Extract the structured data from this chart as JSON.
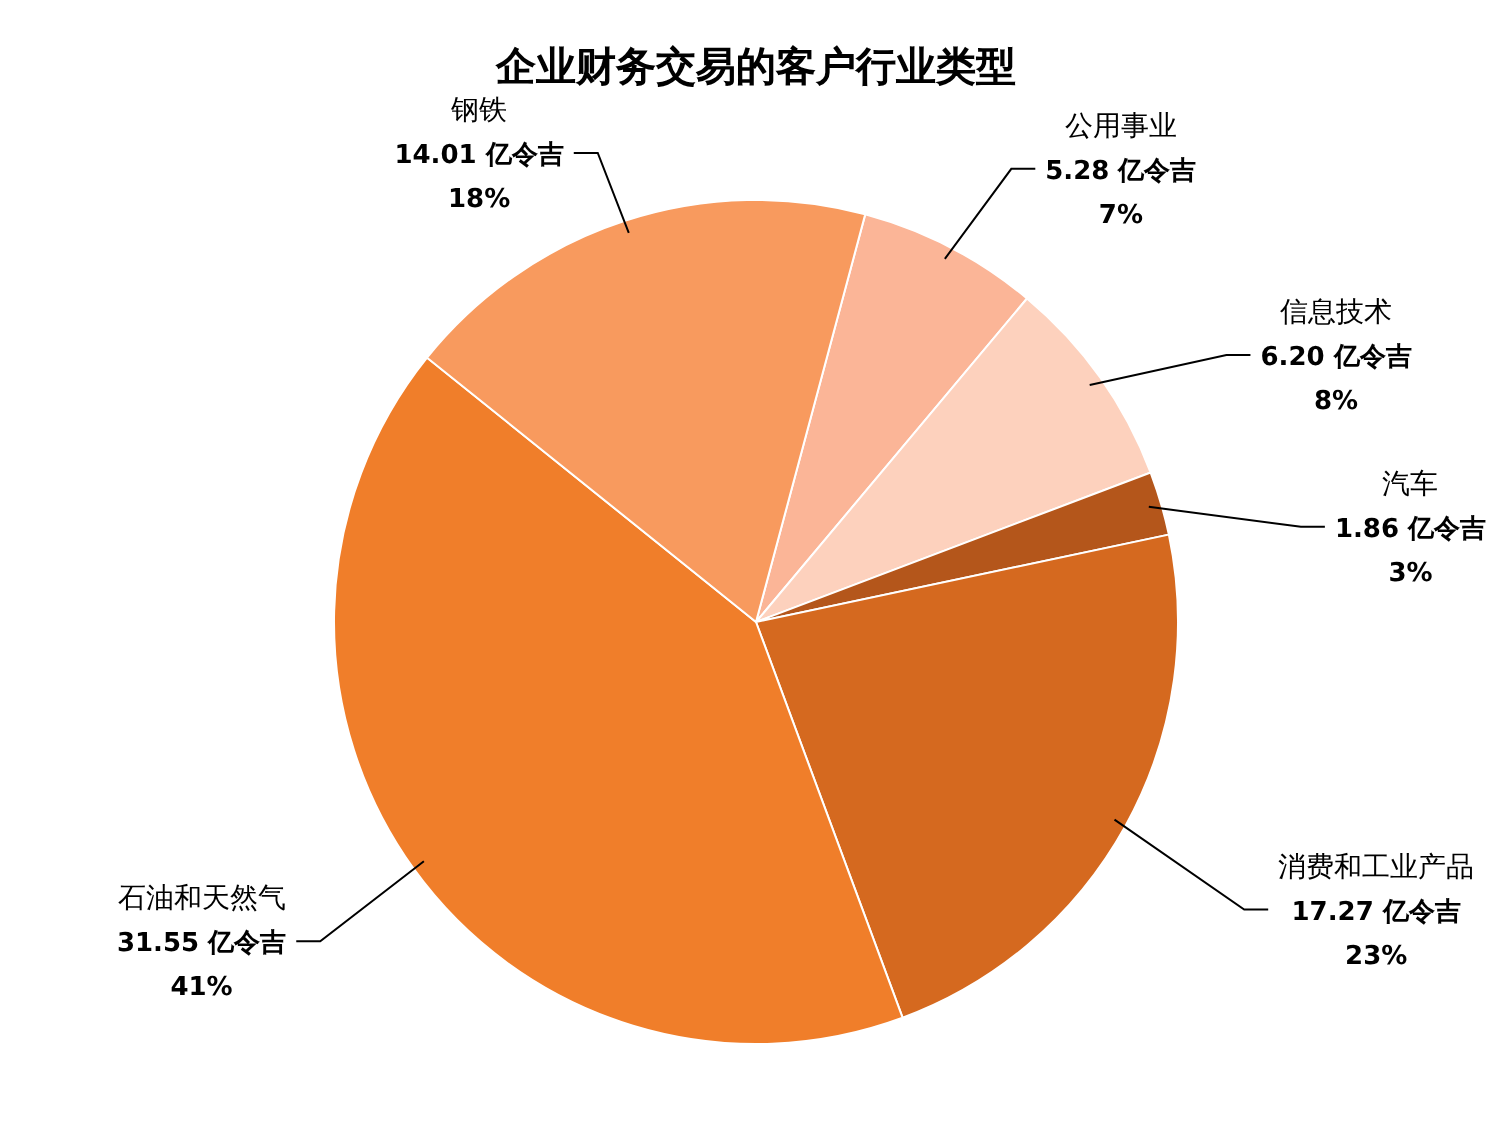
{
  "chart_data": {
    "type": "pie",
    "title": "企业财务交易的客户行业类型",
    "categories": [
      "公用事业",
      "信息技术",
      "汽车",
      "消费和工业产品",
      "石油和天然气",
      "钢铁"
    ],
    "values": [
      5.28,
      6.2,
      1.86,
      17.27,
      31.55,
      14.01
    ],
    "colors": [
      "#fbb597",
      "#fdd1bd",
      "#b4561b",
      "#d5691f",
      "#f07e2a",
      "#f89a5e"
    ],
    "value_labels": [
      "5.28 亿令吉\n7%",
      "6.20 亿令吉\n8%",
      "1.86 亿令吉\n3%",
      "17.27 亿令吉\n23%",
      "31.55 亿令吉\n41%",
      "14.01 亿令吉\n18%"
    ],
    "legend": false
  }
}
